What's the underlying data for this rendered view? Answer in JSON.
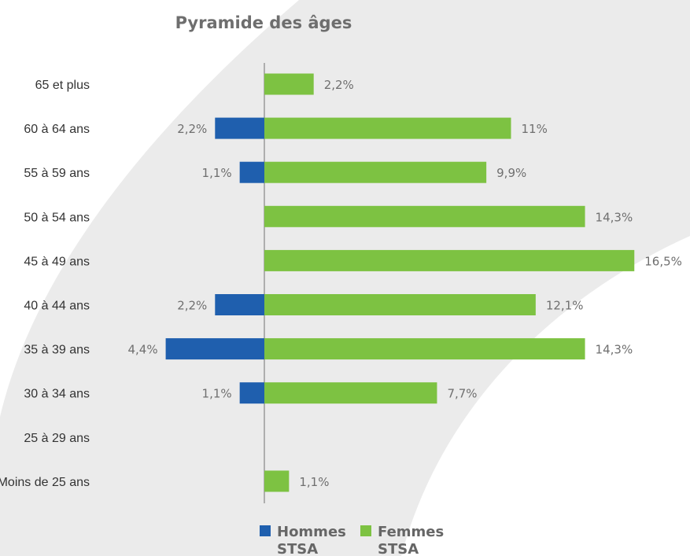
{
  "chart_data": {
    "type": "bar",
    "orientation": "horizontal-diverging",
    "title": "Pyramide des âges",
    "categories": [
      "65 et plus",
      "60 à 64 ans",
      "55 à 59 ans",
      "50 à 54 ans",
      "45 à 49 ans",
      "40 à 44 ans",
      "35 à 39 ans",
      "30 à 34 ans",
      "25 à 29 ans",
      "Moins de 25 ans"
    ],
    "series": [
      {
        "name": "Hommes STSA",
        "side": "left",
        "color": "#1f5fae",
        "values": [
          null,
          2.2,
          1.1,
          null,
          null,
          2.2,
          4.4,
          1.1,
          null,
          null
        ],
        "labels": [
          "",
          "2,2%",
          "1,1%",
          "",
          "",
          "2,2%",
          "4,4%",
          "1,1%",
          "",
          ""
        ]
      },
      {
        "name": "Femmes STSA",
        "side": "right",
        "color": "#7dc242",
        "values": [
          2.2,
          11,
          9.9,
          14.3,
          16.5,
          12.1,
          14.3,
          7.7,
          null,
          1.1
        ],
        "labels": [
          "2,2%",
          "11%",
          "9,9%",
          "14,3%",
          "16,5%",
          "12,1%",
          "14,3%",
          "7,7%",
          "",
          "1,1%"
        ]
      }
    ],
    "legend": {
      "position": "bottom",
      "items": [
        {
          "line1": "Hommes",
          "line2": "STSA",
          "color": "#1f5fae"
        },
        {
          "line1": "Femmes",
          "line2": "STSA",
          "color": "#7dc242"
        }
      ]
    },
    "axis_line_color": "#9a9a9a",
    "grid": false
  }
}
